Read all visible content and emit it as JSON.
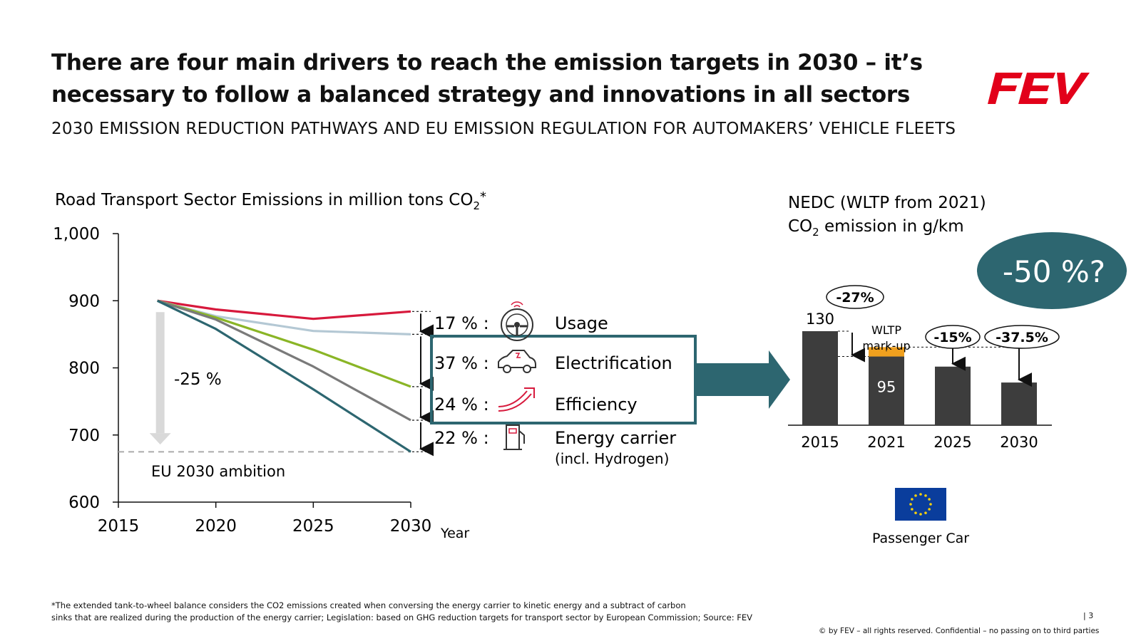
{
  "title": "There are four main drivers to reach the emission targets in 2030 – it’s necessary to follow a balanced strategy and innovations in all sectors",
  "subtitle": "2030 EMISSION REDUCTION PATHWAYS AND EU EMISSION REGULATION FOR AUTOMAKERS’ VEHICLE FLEETS",
  "brand": {
    "logo_text": "FEV",
    "color": "#e2001a"
  },
  "footnote": [
    "*The extended tank-to-wheel balance considers the CO2 emissions created when conversing the energy carrier to kinetic energy and a subtract of carbon",
    "sinks that are realized during the production of the energy carrier; Legislation: based on GHG reduction targets for transport sector by European Commission; Source: FEV"
  ],
  "page_number": "| 3",
  "copyright": "© by FEV – all rights reserved. Confidential – no passing on to third parties",
  "drivers": [
    {
      "pct": "17 % :",
      "label": "Usage",
      "icon": "steering-wheel-icon"
    },
    {
      "pct": "37 % :",
      "label": "Electrification",
      "icon": "electric-car-icon"
    },
    {
      "pct": "24 % :",
      "label": "Efficiency",
      "icon": "efficiency-arrow-icon"
    },
    {
      "pct": "22 % :",
      "label": "Energy carrier",
      "sublabel": "(incl. Hydrogen)",
      "icon": "fuel-pump-icon"
    }
  ],
  "colors": {
    "red": "#d7193c",
    "lightblue": "#b4c8d4",
    "green": "#8ab526",
    "grey": "#7a7a7a",
    "teal": "#2d6670",
    "bar": "#3d3d3d",
    "markup": "#f0a01e",
    "eu_blue": "#0a3d9c",
    "eu_star": "#f7d10c"
  },
  "chart_data": [
    {
      "type": "line",
      "title": "Road Transport Sector Emissions in million tons CO2*",
      "xlabel": "Year",
      "ylabel": "",
      "xlim": [
        2015,
        2030
      ],
      "ylim": [
        600,
        1000
      ],
      "x_ticks": [
        2015,
        2020,
        2025,
        2030
      ],
      "x_tick_labels": [
        "2015",
        "2020",
        "2025",
        "2030"
      ],
      "y_ticks": [
        600,
        700,
        800,
        900,
        1000
      ],
      "y_tick_labels": [
        "600",
        "700",
        "800",
        "900",
        "1,000"
      ],
      "grid": false,
      "series": [
        {
          "color": "#d7193c",
          "x": [
            2017,
            2020,
            2025,
            2030
          ],
          "y": [
            900,
            887,
            873,
            884
          ]
        },
        {
          "color": "#b4c8d4",
          "x": [
            2017,
            2020,
            2025,
            2030
          ],
          "y": [
            900,
            877,
            855,
            850
          ]
        },
        {
          "color": "#8ab526",
          "x": [
            2017,
            2020,
            2025,
            2030
          ],
          "y": [
            900,
            875,
            827,
            772
          ]
        },
        {
          "color": "#7a7a7a",
          "x": [
            2017,
            2020,
            2025,
            2030
          ],
          "y": [
            900,
            872,
            802,
            722
          ]
        },
        {
          "color": "#2d6670",
          "x": [
            2017,
            2020,
            2025,
            2030
          ],
          "y": [
            900,
            858,
            768,
            675
          ]
        }
      ],
      "reference_line": {
        "y": 675,
        "label": "EU 2030 ambition"
      },
      "reduction_arrow": {
        "from": 900,
        "to": 690,
        "x": 2017,
        "label": "-25 %"
      }
    },
    {
      "type": "bar",
      "title": "NEDC (WLTP from 2021) CO2 emission in g/km",
      "categories": [
        "2015",
        "2021",
        "2025",
        "2030"
      ],
      "values": [
        130,
        95,
        81,
        59
      ],
      "ylim": [
        0,
        145
      ],
      "data_labels": [
        "130",
        "95",
        "",
        ""
      ],
      "wltp_markup": {
        "category": "2021",
        "from": 95,
        "to": 108,
        "label_lines": [
          "WLTP",
          "mark-up"
        ]
      },
      "reduction_badges": [
        "-27%",
        "-15%",
        "-37.5%"
      ],
      "highlight": "-50 %?",
      "region_label": "Passenger Car"
    }
  ]
}
